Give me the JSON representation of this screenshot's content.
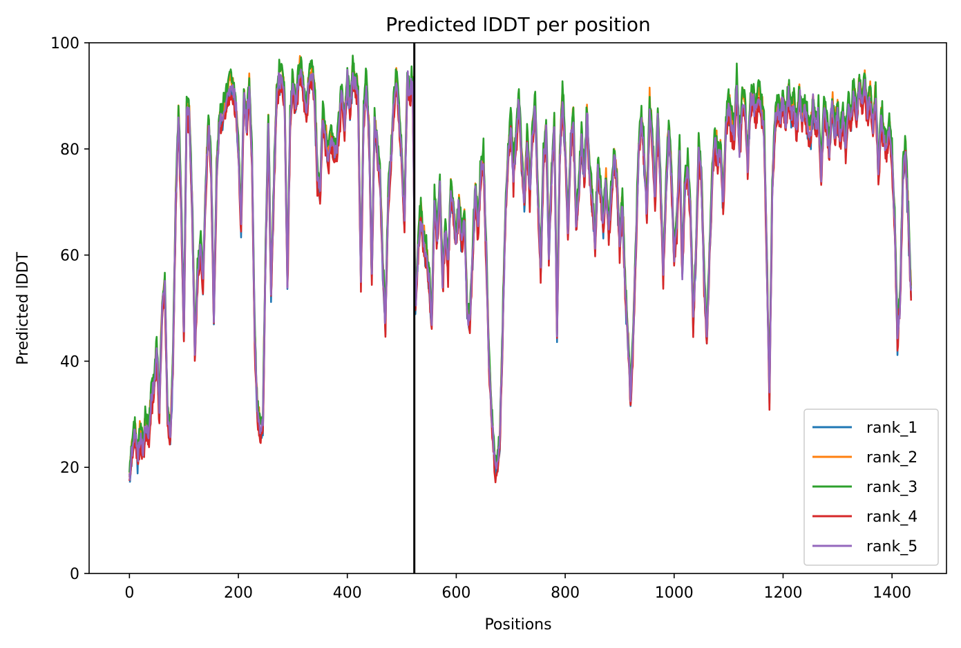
{
  "chart_data": {
    "type": "line",
    "title": "Predicted lDDT per position",
    "xlabel": "Positions",
    "ylabel": "Predicted lDDT",
    "xlim": [
      -74,
      1500
    ],
    "ylim": [
      0,
      100
    ],
    "xticks": [
      0,
      200,
      400,
      600,
      800,
      1000,
      1200,
      1400
    ],
    "yticks": [
      0,
      20,
      40,
      60,
      80,
      100
    ],
    "grid": false,
    "legend_position": "bottom-right",
    "vline_x": 523,
    "vline_color": "#000000",
    "series": [
      {
        "name": "rank_1",
        "color": "#1f77b4",
        "offset": -0.8
      },
      {
        "name": "rank_2",
        "color": "#ff7f0e",
        "offset": 1.2
      },
      {
        "name": "rank_3",
        "color": "#2ca02c",
        "offset": 2.0
      },
      {
        "name": "rank_4",
        "color": "#d62728",
        "offset": -1.6
      },
      {
        "name": "rank_5",
        "color": "#9467bd",
        "offset": 0.0
      }
    ],
    "profile": [
      [
        0,
        18
      ],
      [
        5,
        23
      ],
      [
        10,
        27
      ],
      [
        15,
        22
      ],
      [
        20,
        26
      ],
      [
        25,
        23
      ],
      [
        30,
        28
      ],
      [
        35,
        26
      ],
      [
        40,
        33
      ],
      [
        45,
        35
      ],
      [
        50,
        42
      ],
      [
        55,
        31
      ],
      [
        60,
        50
      ],
      [
        65,
        54
      ],
      [
        70,
        30
      ],
      [
        75,
        25
      ],
      [
        80,
        40
      ],
      [
        85,
        70
      ],
      [
        90,
        86
      ],
      [
        95,
        70
      ],
      [
        100,
        45
      ],
      [
        105,
        88
      ],
      [
        110,
        86
      ],
      [
        115,
        70
      ],
      [
        120,
        42
      ],
      [
        125,
        55
      ],
      [
        130,
        62
      ],
      [
        135,
        55
      ],
      [
        140,
        72
      ],
      [
        145,
        85
      ],
      [
        150,
        76
      ],
      [
        155,
        48
      ],
      [
        160,
        75
      ],
      [
        165,
        85
      ],
      [
        170,
        86
      ],
      [
        175,
        88
      ],
      [
        180,
        90
      ],
      [
        185,
        92
      ],
      [
        190,
        91
      ],
      [
        195,
        88
      ],
      [
        200,
        80
      ],
      [
        205,
        65
      ],
      [
        210,
        90
      ],
      [
        215,
        84
      ],
      [
        220,
        92
      ],
      [
        225,
        78
      ],
      [
        230,
        45
      ],
      [
        235,
        30
      ],
      [
        240,
        27
      ],
      [
        245,
        28
      ],
      [
        250,
        60
      ],
      [
        255,
        85
      ],
      [
        260,
        53
      ],
      [
        265,
        72
      ],
      [
        270,
        90
      ],
      [
        275,
        93
      ],
      [
        280,
        94
      ],
      [
        285,
        88
      ],
      [
        290,
        55
      ],
      [
        295,
        85
      ],
      [
        300,
        92
      ],
      [
        305,
        88
      ],
      [
        310,
        93
      ],
      [
        315,
        95
      ],
      [
        320,
        91
      ],
      [
        325,
        86
      ],
      [
        330,
        93
      ],
      [
        335,
        94
      ],
      [
        340,
        90
      ],
      [
        345,
        75
      ],
      [
        350,
        72
      ],
      [
        355,
        86
      ],
      [
        360,
        82
      ],
      [
        365,
        78
      ],
      [
        370,
        82
      ],
      [
        375,
        80
      ],
      [
        380,
        79
      ],
      [
        385,
        85
      ],
      [
        390,
        91
      ],
      [
        395,
        84
      ],
      [
        400,
        93
      ],
      [
        405,
        88
      ],
      [
        410,
        94
      ],
      [
        415,
        92
      ],
      [
        420,
        90
      ],
      [
        425,
        55
      ],
      [
        430,
        86
      ],
      [
        435,
        92
      ],
      [
        440,
        82
      ],
      [
        445,
        56
      ],
      [
        450,
        85
      ],
      [
        455,
        80
      ],
      [
        460,
        75
      ],
      [
        465,
        58
      ],
      [
        470,
        47
      ],
      [
        475,
        70
      ],
      [
        480,
        78
      ],
      [
        485,
        88
      ],
      [
        490,
        93
      ],
      [
        495,
        86
      ],
      [
        500,
        78
      ],
      [
        505,
        66
      ],
      [
        510,
        93
      ],
      [
        515,
        90
      ],
      [
        520,
        92
      ],
      [
        525,
        50
      ],
      [
        530,
        61
      ],
      [
        535,
        68
      ],
      [
        540,
        62
      ],
      [
        545,
        60
      ],
      [
        550,
        55
      ],
      [
        555,
        47
      ],
      [
        560,
        70
      ],
      [
        565,
        64
      ],
      [
        570,
        73
      ],
      [
        575,
        55
      ],
      [
        580,
        65
      ],
      [
        585,
        58
      ],
      [
        590,
        72
      ],
      [
        595,
        68
      ],
      [
        600,
        62
      ],
      [
        605,
        70
      ],
      [
        610,
        62
      ],
      [
        615,
        67
      ],
      [
        620,
        50
      ],
      [
        625,
        47
      ],
      [
        630,
        60
      ],
      [
        635,
        72
      ],
      [
        640,
        65
      ],
      [
        645,
        75
      ],
      [
        650,
        78
      ],
      [
        655,
        60
      ],
      [
        660,
        40
      ],
      [
        665,
        30
      ],
      [
        670,
        21
      ],
      [
        675,
        20
      ],
      [
        680,
        25
      ],
      [
        685,
        45
      ],
      [
        690,
        67
      ],
      [
        695,
        78
      ],
      [
        700,
        85
      ],
      [
        705,
        75
      ],
      [
        710,
        82
      ],
      [
        715,
        90
      ],
      [
        720,
        78
      ],
      [
        725,
        70
      ],
      [
        730,
        82
      ],
      [
        735,
        72
      ],
      [
        740,
        83
      ],
      [
        745,
        88
      ],
      [
        750,
        70
      ],
      [
        755,
        57
      ],
      [
        760,
        78
      ],
      [
        765,
        84
      ],
      [
        770,
        60
      ],
      [
        775,
        75
      ],
      [
        780,
        85
      ],
      [
        785,
        45
      ],
      [
        790,
        78
      ],
      [
        795,
        90
      ],
      [
        800,
        80
      ],
      [
        805,
        64
      ],
      [
        810,
        80
      ],
      [
        815,
        86
      ],
      [
        820,
        66
      ],
      [
        825,
        72
      ],
      [
        830,
        82
      ],
      [
        835,
        74
      ],
      [
        840,
        86
      ],
      [
        845,
        75
      ],
      [
        850,
        70
      ],
      [
        855,
        62
      ],
      [
        860,
        76
      ],
      [
        865,
        72
      ],
      [
        870,
        66
      ],
      [
        875,
        74
      ],
      [
        880,
        64
      ],
      [
        885,
        72
      ],
      [
        890,
        78
      ],
      [
        895,
        74
      ],
      [
        900,
        62
      ],
      [
        905,
        70
      ],
      [
        910,
        54
      ],
      [
        915,
        45
      ],
      [
        920,
        33
      ],
      [
        925,
        45
      ],
      [
        930,
        62
      ],
      [
        935,
        80
      ],
      [
        940,
        86
      ],
      [
        945,
        78
      ],
      [
        950,
        68
      ],
      [
        955,
        88
      ],
      [
        960,
        82
      ],
      [
        965,
        70
      ],
      [
        970,
        86
      ],
      [
        975,
        73
      ],
      [
        980,
        56
      ],
      [
        985,
        72
      ],
      [
        990,
        84
      ],
      [
        995,
        75
      ],
      [
        1000,
        60
      ],
      [
        1005,
        66
      ],
      [
        1010,
        80
      ],
      [
        1015,
        57
      ],
      [
        1020,
        74
      ],
      [
        1025,
        76
      ],
      [
        1030,
        68
      ],
      [
        1035,
        48
      ],
      [
        1040,
        60
      ],
      [
        1045,
        80
      ],
      [
        1050,
        75
      ],
      [
        1055,
        55
      ],
      [
        1060,
        44
      ],
      [
        1065,
        60
      ],
      [
        1070,
        75
      ],
      [
        1075,
        82
      ],
      [
        1080,
        78
      ],
      [
        1085,
        80
      ],
      [
        1090,
        69
      ],
      [
        1095,
        84
      ],
      [
        1100,
        88
      ],
      [
        1105,
        85
      ],
      [
        1110,
        82
      ],
      [
        1115,
        92
      ],
      [
        1120,
        80
      ],
      [
        1125,
        89
      ],
      [
        1130,
        88
      ],
      [
        1135,
        77
      ],
      [
        1140,
        88
      ],
      [
        1145,
        90
      ],
      [
        1150,
        86
      ],
      [
        1155,
        90
      ],
      [
        1160,
        88
      ],
      [
        1165,
        84
      ],
      [
        1170,
        60
      ],
      [
        1175,
        33
      ],
      [
        1180,
        72
      ],
      [
        1185,
        84
      ],
      [
        1190,
        88
      ],
      [
        1195,
        86
      ],
      [
        1200,
        89
      ],
      [
        1205,
        85
      ],
      [
        1210,
        90
      ],
      [
        1215,
        87
      ],
      [
        1220,
        88
      ],
      [
        1225,
        84
      ],
      [
        1230,
        90
      ],
      [
        1235,
        86
      ],
      [
        1240,
        88
      ],
      [
        1245,
        84
      ],
      [
        1250,
        82
      ],
      [
        1255,
        88
      ],
      [
        1260,
        84
      ],
      [
        1265,
        86
      ],
      [
        1270,
        75
      ],
      [
        1275,
        88
      ],
      [
        1280,
        85
      ],
      [
        1285,
        80
      ],
      [
        1290,
        88
      ],
      [
        1295,
        83
      ],
      [
        1300,
        87
      ],
      [
        1305,
        82
      ],
      [
        1310,
        86
      ],
      [
        1315,
        80
      ],
      [
        1320,
        88
      ],
      [
        1325,
        85
      ],
      [
        1330,
        91
      ],
      [
        1335,
        86
      ],
      [
        1340,
        92
      ],
      [
        1345,
        88
      ],
      [
        1350,
        93
      ],
      [
        1355,
        86
      ],
      [
        1360,
        91
      ],
      [
        1365,
        84
      ],
      [
        1370,
        90
      ],
      [
        1375,
        75
      ],
      [
        1380,
        86
      ],
      [
        1385,
        82
      ],
      [
        1390,
        80
      ],
      [
        1395,
        84
      ],
      [
        1400,
        78
      ],
      [
        1405,
        66
      ],
      [
        1410,
        44
      ],
      [
        1415,
        52
      ],
      [
        1420,
        75
      ],
      [
        1425,
        80
      ],
      [
        1430,
        66
      ],
      [
        1435,
        52
      ]
    ]
  }
}
